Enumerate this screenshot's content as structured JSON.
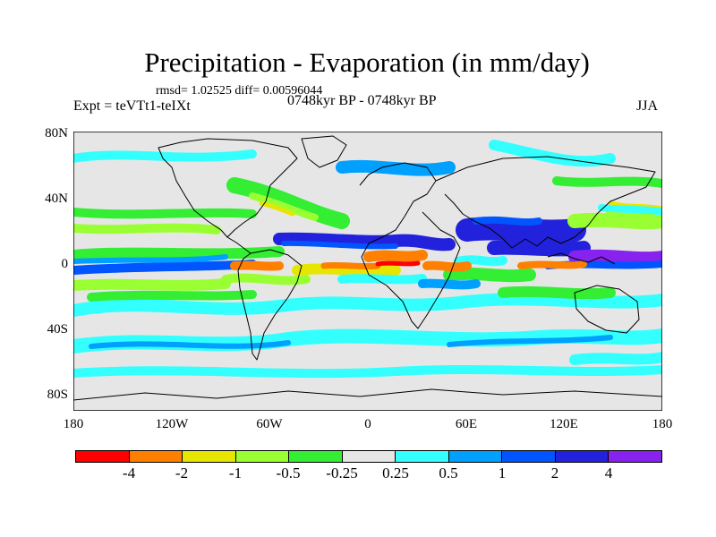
{
  "title": "Precipitation - Evaporation (in mm/day)",
  "stats": "rmsd= 1.02525 diff= 0.00596044",
  "experiment": "Expt = teVTt1-teIXt",
  "period": "0748kyr BP - 0748kyr BP",
  "season": "JJA",
  "lat_labels": [
    "80N",
    "40N",
    "0",
    "40S",
    "80S"
  ],
  "lon_labels": [
    "180",
    "120W",
    "60W",
    "0",
    "60E",
    "120E",
    "180"
  ],
  "colorbar": {
    "labels": [
      "-4",
      "-2",
      "-1",
      "-0.5",
      "-0.25",
      "0.25",
      "0.5",
      "1",
      "2",
      "4"
    ],
    "colors": [
      "#ff0000",
      "#ff8000",
      "#e6e600",
      "#99ff33",
      "#33ee33",
      "#e6e6e6",
      "#33ffff",
      "#00a0ff",
      "#0055ff",
      "#2222dd",
      "#8822ee"
    ]
  },
  "colors": {
    "neutral": "#e6e6e6",
    "coast": "#000000"
  }
}
